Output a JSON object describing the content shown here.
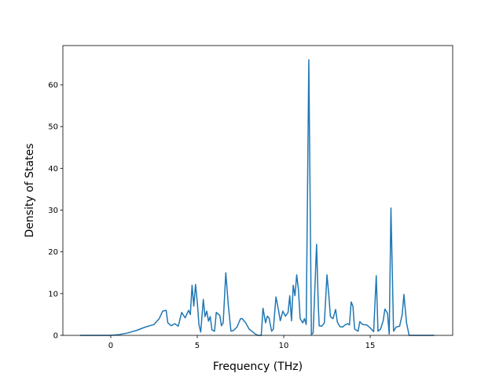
{
  "chart_data": {
    "type": "line",
    "xlabel": "Frequency (THz)",
    "ylabel": "Density of States",
    "xlim": [
      -2.77,
      19.77
    ],
    "ylim": [
      0,
      69.4
    ],
    "xticks": [
      0,
      5,
      10,
      15
    ],
    "yticks": [
      0,
      10,
      20,
      30,
      40,
      50,
      60
    ],
    "color": "#1f77b4",
    "x": [
      -1.77,
      0,
      0.5,
      1.0,
      1.5,
      2.0,
      2.5,
      2.8,
      3.0,
      3.2,
      3.3,
      3.5,
      3.7,
      3.9,
      4.1,
      4.3,
      4.5,
      4.6,
      4.7,
      4.8,
      4.9,
      5.0,
      5.1,
      5.2,
      5.35,
      5.45,
      5.55,
      5.65,
      5.75,
      5.85,
      6.0,
      6.1,
      6.3,
      6.4,
      6.5,
      6.65,
      6.8,
      6.95,
      7.1,
      7.3,
      7.5,
      7.6,
      7.8,
      8.0,
      8.3,
      8.5,
      8.7,
      8.8,
      8.95,
      9.05,
      9.15,
      9.3,
      9.4,
      9.55,
      9.7,
      9.8,
      9.95,
      10.1,
      10.25,
      10.35,
      10.45,
      10.55,
      10.65,
      10.75,
      10.85,
      10.95,
      11.1,
      11.2,
      11.3,
      11.45,
      11.6,
      11.7,
      11.9,
      12.0,
      12.05,
      12.2,
      12.35,
      12.5,
      12.6,
      12.7,
      12.85,
      13.0,
      13.1,
      13.25,
      13.4,
      13.55,
      13.7,
      13.8,
      13.9,
      14.0,
      14.1,
      14.3,
      14.4,
      14.55,
      14.8,
      15.0,
      15.2,
      15.35,
      15.45,
      15.6,
      15.75,
      15.85,
      16.0,
      16.1,
      16.2,
      16.35,
      16.5,
      16.7,
      16.85,
      16.95,
      17.1,
      17.25,
      18.7
    ],
    "values": [
      0,
      0,
      0.2,
      0.6,
      1.2,
      2.0,
      2.6,
      4,
      5.8,
      6.0,
      3,
      2.3,
      2.8,
      2.2,
      5.5,
      4.2,
      6,
      5,
      12,
      7,
      12.2,
      8,
      2.5,
      0.8,
      8.6,
      4.5,
      5.8,
      3.4,
      4.5,
      1.3,
      1.0,
      5.5,
      4.8,
      2.3,
      3,
      15,
      7,
      1.0,
      1.2,
      2,
      4,
      4,
      3,
      1.5,
      0.5,
      0,
      0,
      6.5,
      3,
      4.6,
      4.2,
      1,
      1.5,
      9.2,
      6,
      3.5,
      5.8,
      4.6,
      5.5,
      9.5,
      3.5,
      12,
      9.5,
      14.5,
      11,
      4,
      3,
      4,
      2.6,
      66,
      0.2,
      0.6,
      21.8,
      7,
      2.3,
      2.2,
      3,
      14.5,
      10,
      4.5,
      4,
      6.2,
      3.2,
      2.1,
      2,
      2.5,
      2.8,
      2.5,
      8,
      7,
      1.5,
      1.0,
      3.3,
      2.6,
      2.5,
      1.8,
      0.9,
      14.3,
      1.0,
      1.5,
      3.5,
      6.3,
      5.3,
      0.3,
      30.5,
      1.0,
      2.0,
      2.2,
      5,
      9.8,
      3,
      0,
      0
    ]
  }
}
